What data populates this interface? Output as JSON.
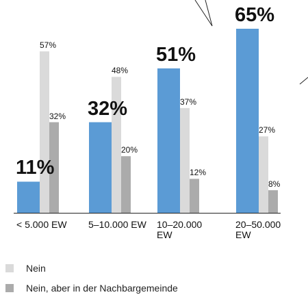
{
  "chart_data": {
    "type": "bar",
    "categories": [
      "< 5.000 EW",
      "5–10.000 EW",
      "10–20.000 EW",
      "20–50.000 EW"
    ],
    "ylim": [
      0,
      65
    ],
    "series": [
      {
        "color": "#5b9bd5",
        "values": [
          11,
          32,
          51,
          65
        ],
        "value_labels": [
          "11%",
          "32%",
          "51%",
          "65%"
        ]
      },
      {
        "name": "Nein",
        "color": "#dadada",
        "values": [
          57,
          48,
          37,
          27
        ],
        "value_labels": [
          "57%",
          "48%",
          "37%",
          "27%"
        ]
      },
      {
        "name": "Nein, aber in der Nachbargemeinde",
        "color": "#ababab",
        "values": [
          32,
          20,
          12,
          8
        ],
        "value_labels": [
          "32%",
          "20%",
          "12%",
          "8%"
        ]
      }
    ]
  }
}
